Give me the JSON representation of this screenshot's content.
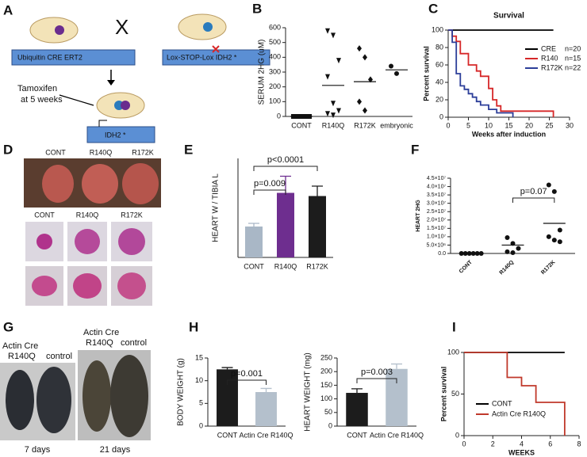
{
  "panel_labels": [
    "A",
    "B",
    "C",
    "D",
    "E",
    "F",
    "G",
    "H",
    "I"
  ],
  "diagram_a": {
    "left_box": "Ubiquitin  CRE ERT2",
    "cross": "X",
    "right_box": "Lox-STOP-Lox  IDH2 *",
    "treatment": [
      "Tamoxifen",
      "at 5 weeks"
    ],
    "result_box": "IDH2 *"
  },
  "photos_d": {
    "top_labels": [
      "CONT",
      "R140Q",
      "R172K"
    ],
    "bottom_labels": [
      "CONT",
      "R140Q",
      "R172K"
    ]
  },
  "photos_g": {
    "left_labels": [
      "Actin Cre",
      "R140Q",
      "control"
    ],
    "right_labels": [
      "Actin Cre",
      "R140Q",
      "control"
    ],
    "left_caption": "7 days",
    "right_caption": "21 days"
  },
  "chart_data": [
    {
      "type": "dot",
      "ylabel": "SERUM 2HG (uM)",
      "categories": [
        "CONT",
        "R140Q",
        "R172K",
        "embryonic"
      ],
      "values": [
        [
          0,
          0,
          0,
          0,
          0
        ],
        [
          580,
          550,
          380,
          270,
          90,
          40,
          20,
          10
        ],
        [
          460,
          400,
          250,
          100,
          40
        ],
        [
          340,
          290
        ]
      ],
      "means": [
        0,
        210,
        235,
        315
      ],
      "markers": [
        "square",
        "triangle-down",
        "diamond",
        "circle"
      ],
      "ylim": [
        0,
        600
      ],
      "yticks": [
        0,
        100,
        200,
        300,
        400,
        500,
        600
      ]
    },
    {
      "type": "step",
      "title": "Survival",
      "xlabel": "Weeks after induction",
      "ylabel": "Percent survival",
      "series": [
        {
          "name": "CRE",
          "n_label": "n=20",
          "color": "#000000",
          "x": [
            0,
            26
          ],
          "values": [
            100,
            100
          ]
        },
        {
          "name": "R140",
          "n_label": "n=15",
          "color": "#d62728",
          "x": [
            0,
            1,
            2,
            3,
            5,
            7,
            8,
            10,
            11,
            12,
            13,
            26
          ],
          "values": [
            100,
            93,
            87,
            73,
            60,
            53,
            47,
            33,
            20,
            13,
            7,
            0
          ]
        },
        {
          "name": "R172K",
          "n_label": "n=22",
          "color": "#2c3e99",
          "x": [
            0,
            1,
            2,
            3,
            4,
            5,
            6,
            7,
            8,
            10,
            12,
            16
          ],
          "values": [
            100,
            86,
            50,
            36,
            32,
            27,
            23,
            18,
            14,
            9,
            5,
            0
          ]
        }
      ],
      "xlim": [
        0,
        30
      ],
      "xticks": [
        0,
        5,
        10,
        15,
        20,
        25,
        30
      ],
      "ylim": [
        0,
        100
      ],
      "yticks": [
        0,
        20,
        40,
        60,
        80,
        100
      ]
    },
    {
      "type": "bar",
      "ylabel": "HEART W / TIBIA L",
      "categories": [
        "CONT",
        "R140Q",
        "R172K"
      ],
      "values": [
        78,
        163,
        155
      ],
      "errors": [
        8,
        42,
        25
      ],
      "colors": [
        "#a9b7c6",
        "#6e2e8f",
        "#1c1c1c"
      ],
      "ylim": [
        0,
        250
      ],
      "annotations": [
        "p<0.0001",
        "p=0.009"
      ]
    },
    {
      "type": "dot",
      "ylabel": "HEART 2HG",
      "categories": [
        "CONT",
        "R140Q",
        "R172K"
      ],
      "values": [
        [
          0,
          0,
          0,
          0,
          0,
          0
        ],
        [
          9500000,
          6000000,
          3000000,
          1000000,
          500000
        ],
        [
          41000000,
          37000000,
          14000000,
          10000000,
          8000000,
          7000000
        ]
      ],
      "means": [
        0,
        5000000,
        18000000
      ],
      "markers": [
        "circle",
        "circle",
        "circle"
      ],
      "ylim": [
        0,
        45000000
      ],
      "yticks": [
        {
          "value": 0,
          "label": "0.0"
        },
        {
          "value": 5000000,
          "label": "5.0×10⁶"
        },
        {
          "value": 10000000,
          "label": "1.0×10⁷"
        },
        {
          "value": 15000000,
          "label": "1.5×10⁷"
        },
        {
          "value": 20000000,
          "label": "2.0×10⁷"
        },
        {
          "value": 25000000,
          "label": "2.5×10⁷"
        },
        {
          "value": 30000000,
          "label": "3.0×10⁷"
        },
        {
          "value": 35000000,
          "label": "3.5×10⁷"
        },
        {
          "value": 40000000,
          "label": "4.0×10⁷"
        },
        {
          "value": 45000000,
          "label": "4.5×10⁷"
        }
      ],
      "annotations": [
        "p=0.07"
      ]
    },
    {
      "type": "bar",
      "ylabel": "BODY WEIGHT (g)",
      "categories": [
        "CONT",
        "Actin Cre R140Q"
      ],
      "values": [
        12.5,
        7.5
      ],
      "errors": [
        0.4,
        0.8
      ],
      "colors": [
        "#1c1c1c",
        "#b4c0cc"
      ],
      "ylim": [
        0,
        15
      ],
      "yticks": [
        0,
        5,
        10,
        15
      ],
      "annotations": [
        "p=0.001"
      ]
    },
    {
      "type": "bar",
      "ylabel": "HEART WEIGHT (mg)",
      "categories": [
        "CONT",
        "Actin Cre R140Q"
      ],
      "values": [
        122,
        210
      ],
      "errors": [
        15,
        18
      ],
      "colors": [
        "#1c1c1c",
        "#b4c0cc"
      ],
      "ylim": [
        0,
        250
      ],
      "yticks": [
        0,
        50,
        100,
        150,
        200,
        250
      ],
      "annotations": [
        "p=0.003"
      ]
    },
    {
      "type": "step",
      "xlabel": "WEEKS",
      "ylabel": "Percent survival",
      "series": [
        {
          "name": "CONT",
          "color": "#000000",
          "x": [
            0,
            7
          ],
          "values": [
            100,
            100
          ]
        },
        {
          "name": "Actin Cre R140Q",
          "color": "#c0392b",
          "x": [
            0,
            3,
            4,
            5,
            7
          ],
          "values": [
            100,
            70,
            60,
            40,
            0
          ]
        }
      ],
      "xlim": [
        0,
        8
      ],
      "xticks": [
        0,
        2,
        4,
        6,
        8
      ],
      "ylim": [
        0,
        100
      ],
      "yticks": [
        0,
        50,
        100
      ]
    }
  ]
}
